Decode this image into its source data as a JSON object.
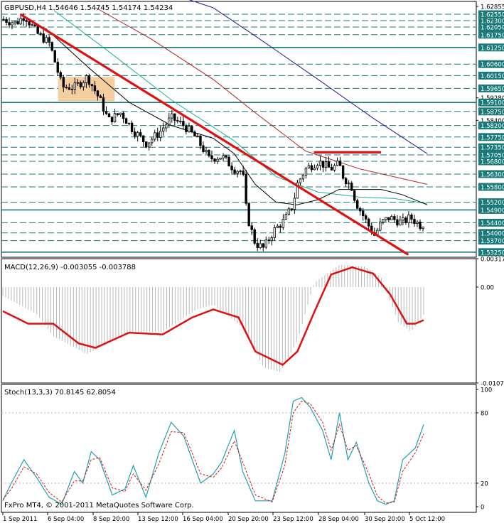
{
  "chart_data": [
    {
      "type": "candlestick",
      "panel": "price",
      "title": "GBPUSD,H4  1.54646 1.54745 1.54174 1.54234",
      "y_ticks": [
        "1.62855",
        "1.62550",
        "1.62300",
        "1.62050",
        "1.61750",
        "1.61250",
        "1.60600",
        "1.60150",
        "1.59650",
        "1.59280",
        "1.59100",
        "1.58750",
        "1.58400",
        "1.58200",
        "1.57750",
        "1.57350",
        "1.57050",
        "1.56800",
        "1.56300",
        "1.55800",
        "1.55200",
        "1.54900",
        "1.54400",
        "1.54000",
        "1.53700",
        "1.53250"
      ],
      "ylim": [
        1.5305,
        1.6305
      ],
      "levels": [
        1.6255,
        1.623,
        1.6205,
        1.6175,
        1.6125,
        1.606,
        1.6015,
        1.5965,
        1.591,
        1.5875,
        1.582,
        1.5775,
        1.5735,
        1.5705,
        1.568,
        1.563,
        1.558,
        1.552,
        1.549,
        1.544,
        1.54,
        1.537,
        1.5325
      ],
      "solid_levels": [
        1.6125,
        1.591,
        1.549,
        1.5325
      ],
      "last_price": 1.54234,
      "colors": {
        "levels": "#1a7a7a",
        "candles": "#000000",
        "trendline": "#dd1111",
        "box": "#f5cfa0",
        "ma_blue": "#1b1b8a",
        "ma_dark_red": "#b22222",
        "ma_green": "#20b090",
        "ma_black": "#000000"
      },
      "candle_path": [
        [
          0,
          1.6235
        ],
        [
          0.03,
          1.622
        ],
        [
          0.05,
          1.625
        ],
        [
          0.08,
          1.618
        ],
        [
          0.11,
          1.614
        ],
        [
          0.14,
          1.597
        ],
        [
          0.17,
          1.597
        ],
        [
          0.2,
          1.601
        ],
        [
          0.23,
          1.592
        ],
        [
          0.25,
          1.584
        ],
        [
          0.28,
          1.587
        ],
        [
          0.31,
          1.58
        ],
        [
          0.34,
          1.575
        ],
        [
          0.37,
          1.579
        ],
        [
          0.4,
          1.585
        ],
        [
          0.43,
          1.582
        ],
        [
          0.46,
          1.577
        ],
        [
          0.49,
          1.569
        ],
        [
          0.52,
          1.57
        ],
        [
          0.55,
          1.565
        ],
        [
          0.57,
          1.564
        ],
        [
          0.58,
          1.547
        ],
        [
          0.6,
          1.536
        ],
        [
          0.62,
          1.534
        ],
        [
          0.645,
          1.541
        ],
        [
          0.67,
          1.545
        ],
        [
          0.69,
          1.551
        ],
        [
          0.7,
          1.559
        ],
        [
          0.72,
          1.565
        ],
        [
          0.75,
          1.568
        ],
        [
          0.78,
          1.565
        ],
        [
          0.8,
          1.567
        ],
        [
          0.81,
          1.562
        ],
        [
          0.83,
          1.558
        ],
        [
          0.84,
          1.552
        ],
        [
          0.87,
          1.543
        ],
        [
          0.885,
          1.539
        ],
        [
          0.9,
          1.544
        ],
        [
          0.92,
          1.546
        ],
        [
          0.95,
          1.544
        ],
        [
          0.97,
          1.546
        ],
        [
          1,
          1.5423
        ]
      ],
      "red_lines": [
        {
          "x1": 0.04,
          "y1": 1.6255,
          "x2": 0.965,
          "y2": 1.5315
        },
        {
          "x1": 0.74,
          "y1": 1.5715,
          "x2": 0.9,
          "y2": 1.5715
        }
      ],
      "consolidation_box": {
        "x1": 0.13,
        "x2": 0.265,
        "y1": 1.5915,
        "y2": 1.601
      },
      "moving_averages": [
        {
          "color": "ma_blue",
          "points": [
            [
              0.3,
              1.639
            ],
            [
              0.5,
              1.628
            ],
            [
              0.6,
              1.617
            ],
            [
              0.75,
              1.6
            ],
            [
              0.88,
              1.585
            ],
            [
              1.01,
              1.571
            ]
          ]
        },
        {
          "color": "ma_dark_red",
          "points": [
            [
              0.22,
              1.628
            ],
            [
              0.35,
              1.616
            ],
            [
              0.5,
              1.6
            ],
            [
              0.6,
              1.587
            ],
            [
              0.72,
              1.572
            ],
            [
              0.85,
              1.565
            ],
            [
              1.01,
              1.559
            ]
          ]
        },
        {
          "color": "ma_green",
          "points": [
            [
              0.12,
              1.627
            ],
            [
              0.25,
              1.611
            ],
            [
              0.4,
              1.592
            ],
            [
              0.55,
              1.576
            ],
            [
              0.65,
              1.562
            ],
            [
              0.75,
              1.556
            ],
            [
              0.85,
              1.554
            ],
            [
              0.93,
              1.5535
            ],
            [
              1.01,
              1.5515
            ]
          ]
        },
        {
          "color": "ma_black",
          "points": [
            [
              0.1,
              1.62
            ],
            [
              0.2,
              1.605
            ],
            [
              0.3,
              1.591
            ],
            [
              0.4,
              1.582
            ],
            [
              0.5,
              1.577
            ],
            [
              0.55,
              1.571
            ],
            [
              0.6,
              1.559
            ],
            [
              0.65,
              1.552
            ],
            [
              0.7,
              1.551
            ],
            [
              0.75,
              1.553
            ],
            [
              0.8,
              1.557
            ],
            [
              0.85,
              1.557
            ],
            [
              0.9,
              1.557
            ],
            [
              0.95,
              1.555
            ],
            [
              1.01,
              1.551
            ]
          ]
        }
      ]
    },
    {
      "type": "line",
      "panel": "macd",
      "title": "MACD(12,26,9) -0.003055 -0.003788",
      "y_ticks": [
        "0.00317",
        "0.00",
        "-0.01073"
      ],
      "ylim": [
        -0.01073,
        0.00317
      ],
      "signal": [
        [
          0,
          -0.0027
        ],
        [
          0.06,
          -0.0041
        ],
        [
          0.12,
          -0.0041
        ],
        [
          0.18,
          -0.0063
        ],
        [
          0.22,
          -0.0068
        ],
        [
          0.3,
          -0.0051
        ],
        [
          0.38,
          -0.0053
        ],
        [
          0.45,
          -0.0034
        ],
        [
          0.5,
          -0.0025
        ],
        [
          0.56,
          -0.0034
        ],
        [
          0.6,
          -0.0072
        ],
        [
          0.665,
          -0.0087
        ],
        [
          0.7,
          -0.0072
        ],
        [
          0.74,
          -0.0028
        ],
        [
          0.78,
          0.0014
        ],
        [
          0.83,
          0.0022
        ],
        [
          0.88,
          0.0015
        ],
        [
          0.92,
          -0.0008
        ],
        [
          0.96,
          -0.0041
        ],
        [
          0.98,
          -0.0041
        ],
        [
          1,
          -0.0037
        ]
      ],
      "histogram": [
        [
          0,
          -0.001
        ],
        [
          0.08,
          -0.003
        ],
        [
          0.12,
          -0.0055
        ],
        [
          0.2,
          -0.0075
        ],
        [
          0.3,
          -0.005
        ],
        [
          0.38,
          -0.005
        ],
        [
          0.46,
          -0.0025
        ],
        [
          0.5,
          -0.002
        ],
        [
          0.57,
          -0.0045
        ],
        [
          0.62,
          -0.009
        ],
        [
          0.66,
          -0.0095
        ],
        [
          0.7,
          -0.006
        ],
        [
          0.74,
          0.0005
        ],
        [
          0.8,
          0.0025
        ],
        [
          0.86,
          0.0023
        ],
        [
          0.9,
          0.001
        ],
        [
          0.94,
          -0.004
        ],
        [
          0.97,
          -0.005
        ],
        [
          1,
          -0.0031
        ]
      ],
      "colors": {
        "signal": "#dd1111",
        "histogram": "#b8b8b8"
      }
    },
    {
      "type": "line",
      "panel": "stochastic",
      "title": "Stoch(13,3,3) 70.8145 62.8054",
      "y_ticks": [
        "100",
        "80",
        "20",
        "0"
      ],
      "ylim": [
        0,
        100
      ],
      "main": [
        [
          0,
          5
        ],
        [
          0.02,
          20
        ],
        [
          0.05,
          40
        ],
        [
          0.08,
          25
        ],
        [
          0.11,
          8
        ],
        [
          0.14,
          2
        ],
        [
          0.17,
          30
        ],
        [
          0.19,
          20
        ],
        [
          0.21,
          47
        ],
        [
          0.23,
          40
        ],
        [
          0.26,
          10
        ],
        [
          0.29,
          15
        ],
        [
          0.31,
          35
        ],
        [
          0.34,
          8
        ],
        [
          0.37,
          45
        ],
        [
          0.4,
          72
        ],
        [
          0.43,
          60
        ],
        [
          0.47,
          20
        ],
        [
          0.5,
          28
        ],
        [
          0.52,
          38
        ],
        [
          0.55,
          65
        ],
        [
          0.57,
          30
        ],
        [
          0.6,
          5
        ],
        [
          0.64,
          5
        ],
        [
          0.67,
          45
        ],
        [
          0.69,
          90
        ],
        [
          0.71,
          93
        ],
        [
          0.73,
          85
        ],
        [
          0.76,
          65
        ],
        [
          0.78,
          40
        ],
        [
          0.8,
          80
        ],
        [
          0.82,
          40
        ],
        [
          0.84,
          55
        ],
        [
          0.87,
          20
        ],
        [
          0.89,
          5
        ],
        [
          0.91,
          2
        ],
        [
          0.93,
          5
        ],
        [
          0.95,
          40
        ],
        [
          0.98,
          50
        ],
        [
          1,
          70
        ]
      ],
      "signal_line": [
        [
          0,
          6
        ],
        [
          0.02,
          15
        ],
        [
          0.05,
          34
        ],
        [
          0.08,
          28
        ],
        [
          0.11,
          12
        ],
        [
          0.14,
          4
        ],
        [
          0.17,
          22
        ],
        [
          0.19,
          22
        ],
        [
          0.21,
          40
        ],
        [
          0.23,
          42
        ],
        [
          0.26,
          16
        ],
        [
          0.29,
          13
        ],
        [
          0.31,
          28
        ],
        [
          0.34,
          14
        ],
        [
          0.37,
          36
        ],
        [
          0.4,
          64
        ],
        [
          0.43,
          63
        ],
        [
          0.47,
          28
        ],
        [
          0.5,
          25
        ],
        [
          0.52,
          33
        ],
        [
          0.55,
          56
        ],
        [
          0.57,
          38
        ],
        [
          0.6,
          10
        ],
        [
          0.64,
          4
        ],
        [
          0.67,
          35
        ],
        [
          0.69,
          80
        ],
        [
          0.71,
          90
        ],
        [
          0.73,
          88
        ],
        [
          0.76,
          72
        ],
        [
          0.78,
          48
        ],
        [
          0.8,
          70
        ],
        [
          0.82,
          48
        ],
        [
          0.84,
          52
        ],
        [
          0.87,
          28
        ],
        [
          0.89,
          9
        ],
        [
          0.91,
          3
        ],
        [
          0.93,
          4
        ],
        [
          0.95,
          30
        ],
        [
          0.98,
          46
        ],
        [
          1,
          62
        ]
      ],
      "colors": {
        "main": "#20a0b0",
        "signal_line": "#dd1111"
      }
    }
  ],
  "time_axis": [
    "1 Sep 2011",
    "6 Sep 04:00",
    "8 Sep 20:00",
    "13 Sep 12:00",
    "16 Sep 04:00",
    "20 Sep 20:00",
    "23 Sep 12:00",
    "28 Sep 04:00",
    "30 Sep 20:00",
    "5 Oct 12:00"
  ],
  "copyright": "FxPro MT4, © 2001-2011 MetaQuotes Software Corp."
}
